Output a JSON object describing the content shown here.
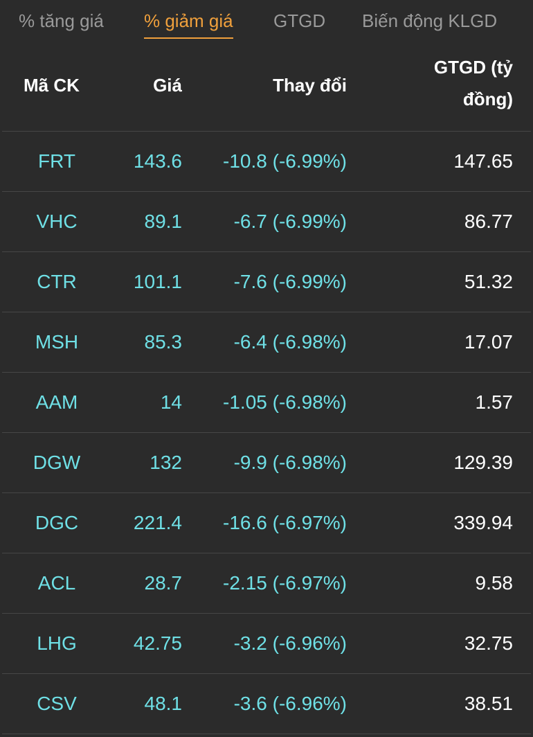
{
  "tabs": [
    {
      "label": "% tăng giá"
    },
    {
      "label": "% giảm giá"
    },
    {
      "label": "GTGD"
    },
    {
      "label": "Biến động KLGD"
    }
  ],
  "table": {
    "headers": {
      "code": "Mã CK",
      "price": "Giá",
      "change": "Thay đổi",
      "value": "GTGD (tỷ đồng)"
    },
    "rows": [
      {
        "code": "FRT",
        "price": "143.6",
        "change": "-10.8 (-6.99%)",
        "value": "147.65"
      },
      {
        "code": "VHC",
        "price": "89.1",
        "change": "-6.7 (-6.99%)",
        "value": "86.77"
      },
      {
        "code": "CTR",
        "price": "101.1",
        "change": "-7.6 (-6.99%)",
        "value": "51.32"
      },
      {
        "code": "MSH",
        "price": "85.3",
        "change": "-6.4 (-6.98%)",
        "value": "17.07"
      },
      {
        "code": "AAM",
        "price": "14",
        "change": "-1.05 (-6.98%)",
        "value": "1.57"
      },
      {
        "code": "DGW",
        "price": "132",
        "change": "-9.9 (-6.98%)",
        "value": "129.39"
      },
      {
        "code": "DGC",
        "price": "221.4",
        "change": "-16.6 (-6.97%)",
        "value": "339.94"
      },
      {
        "code": "ACL",
        "price": "28.7",
        "change": "-2.15 (-6.97%)",
        "value": "9.58"
      },
      {
        "code": "LHG",
        "price": "42.75",
        "change": "-3.2 (-6.96%)",
        "value": "32.75"
      },
      {
        "code": "CSV",
        "price": "48.1",
        "change": "-3.6 (-6.96%)",
        "value": "38.51"
      }
    ]
  },
  "colors": {
    "background": "#2b2b2b",
    "active_tab": "#f0a03c",
    "inactive_tab": "#9a9a9a",
    "price_text": "#6fe0e6",
    "value_text": "#ffffff",
    "divider": "#474747"
  }
}
